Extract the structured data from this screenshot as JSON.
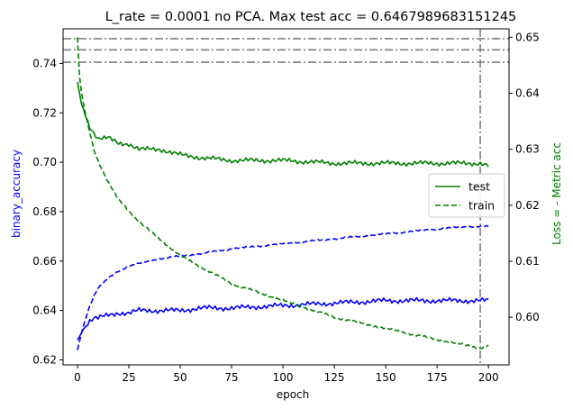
{
  "chart_data": {
    "type": "line",
    "title": "L_rate = 0.0001 no PCA. Max test acc = 0.6467989683151245",
    "xlabel": "epoch",
    "ylabel_left": "binary_accuracy",
    "ylabel_right": "Loss = - Metric acc",
    "xlim": [
      -7,
      210
    ],
    "ylim_left": [
      0.618,
      0.754
    ],
    "ylim_right": [
      0.5915,
      0.6515
    ],
    "xticks": [
      0,
      25,
      50,
      75,
      100,
      125,
      150,
      175,
      200
    ],
    "yticks_left": [
      0.62,
      0.64,
      0.66,
      0.68,
      0.7,
      0.72,
      0.74
    ],
    "yticks_right": [
      0.6,
      0.61,
      0.62,
      0.63,
      0.64,
      0.65
    ],
    "reference_lines": {
      "left_horizontal": [
        0.75,
        0.7455,
        0.7405
      ],
      "vertical_epoch": 196
    },
    "legend": {
      "position": "center-right",
      "entries": [
        {
          "label": "test",
          "style": "solid",
          "color": "#008000"
        },
        {
          "label": "train",
          "style": "dashed",
          "color": "#008000"
        }
      ]
    },
    "series": [
      {
        "axis": "left",
        "style": "solid",
        "color": "#0000ff",
        "x": [
          0,
          2,
          4,
          6,
          8,
          10,
          15,
          20,
          25,
          30,
          40,
          50,
          60,
          75,
          100,
          125,
          150,
          175,
          200
        ],
        "y": [
          0.628,
          0.631,
          0.634,
          0.636,
          0.637,
          0.637,
          0.638,
          0.639,
          0.639,
          0.64,
          0.64,
          0.64,
          0.641,
          0.641,
          0.642,
          0.643,
          0.644,
          0.644,
          0.644
        ]
      },
      {
        "axis": "left",
        "style": "dashed",
        "color": "#0000ff",
        "x": [
          0,
          2,
          4,
          6,
          8,
          10,
          15,
          20,
          25,
          30,
          40,
          50,
          60,
          75,
          100,
          125,
          150,
          175,
          190,
          200
        ],
        "y": [
          0.624,
          0.631,
          0.637,
          0.642,
          0.646,
          0.649,
          0.653,
          0.656,
          0.658,
          0.659,
          0.661,
          0.662,
          0.663,
          0.665,
          0.667,
          0.669,
          0.671,
          0.673,
          0.674,
          0.674
        ]
      },
      {
        "axis": "right",
        "style": "solid",
        "color": "#008000",
        "x": [
          0,
          1,
          2,
          4,
          6,
          8,
          10,
          15,
          20,
          25,
          30,
          40,
          50,
          60,
          75,
          100,
          125,
          150,
          175,
          196,
          200
        ],
        "y": [
          0.642,
          0.64,
          0.638,
          0.636,
          0.634,
          0.633,
          0.632,
          0.632,
          0.631,
          0.631,
          0.63,
          0.63,
          0.629,
          0.6285,
          0.628,
          0.628,
          0.6275,
          0.6275,
          0.6275,
          0.6275,
          0.627
        ]
      },
      {
        "axis": "right",
        "style": "dashed",
        "color": "#008000",
        "x": [
          0,
          1,
          2,
          4,
          6,
          8,
          10,
          15,
          20,
          25,
          30,
          40,
          50,
          60,
          75,
          100,
          125,
          150,
          175,
          196,
          200
        ],
        "y": [
          0.65,
          0.643,
          0.64,
          0.636,
          0.633,
          0.63,
          0.628,
          0.624,
          0.621,
          0.619,
          0.617,
          0.614,
          0.611,
          0.609,
          0.606,
          0.603,
          0.6,
          0.598,
          0.596,
          0.5945,
          0.595
        ]
      }
    ]
  }
}
